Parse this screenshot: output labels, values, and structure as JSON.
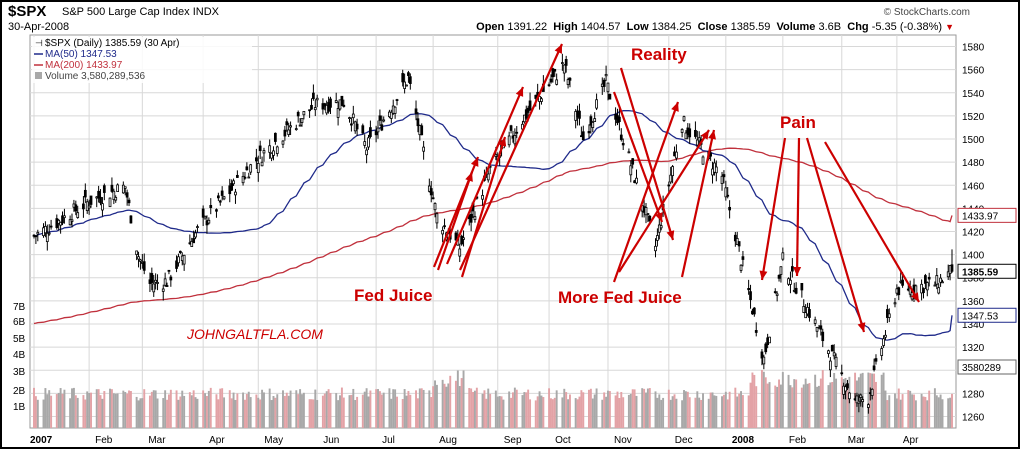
{
  "header": {
    "symbol": "$SPX",
    "name": "S&P 500 Large Cap Index",
    "exchange": "INDX",
    "date": "30-Apr-2008",
    "credit": "© StockCharts.com",
    "open_label": "Open",
    "open": "1391.22",
    "high_label": "High",
    "high": "1404.57",
    "low_label": "Low",
    "low": "1384.25",
    "close_label": "Close",
    "close": "1385.59",
    "volume_label": "Volume",
    "volume": "3.6B",
    "chg_label": "Chg",
    "chg": "-5.35 (-0.38%)"
  },
  "colors": {
    "price": "#000000",
    "ma50": "#1f2a8a",
    "ma200": "#c0303c",
    "volume_up": "#a8a8a8",
    "volume_down": "#e3a2a6",
    "annotation": "#cc0000",
    "grid": "#d8d8d8"
  },
  "chart_data": {
    "type": "candlestick",
    "legend_placement": "top-left",
    "grid": true,
    "legend": {
      "price": "$SPX (Daily) 1385.59 (30 Apr)",
      "ma50": "MA(50) 1347.53",
      "ma200": "MA(200) 1433.97",
      "volume": "Volume 3,580,289,536"
    },
    "x_tick_labels": [
      "2007",
      "Feb",
      "Mar",
      "Apr",
      "May",
      "Jun",
      "Jul",
      "Aug",
      "Sep",
      "Oct",
      "Nov",
      "Dec",
      "2008",
      "Feb",
      "Mar",
      "Apr"
    ],
    "y_range": [
      1250,
      1590
    ],
    "y_ticks": [
      1260,
      1280,
      1300,
      1320,
      1340,
      1360,
      1380,
      1400,
      1420,
      1440,
      1460,
      1480,
      1500,
      1520,
      1540,
      1560,
      1580
    ],
    "volume_ticks": [
      "1B",
      "2B",
      "3B",
      "4B",
      "5B",
      "6B",
      "7B"
    ],
    "volume_ticks_right": [
      "3580289"
    ],
    "last_price_tag": "1385.59",
    "ma50_tag": "1347.53",
    "ma200_tag": "1433.97",
    "price_series": [
      {
        "date": "2007-01-03",
        "close": 1416
      },
      {
        "date": "2007-01-17",
        "close": 1430
      },
      {
        "date": "2007-02-01",
        "close": 1446
      },
      {
        "date": "2007-02-20",
        "close": 1459
      },
      {
        "date": "2007-02-27",
        "close": 1399
      },
      {
        "date": "2007-03-05",
        "close": 1375
      },
      {
        "date": "2007-03-14",
        "close": 1377
      },
      {
        "date": "2007-03-30",
        "close": 1421
      },
      {
        "date": "2007-04-30",
        "close": 1482
      },
      {
        "date": "2007-05-31",
        "close": 1530
      },
      {
        "date": "2007-06-15",
        "close": 1532
      },
      {
        "date": "2007-06-27",
        "close": 1492
      },
      {
        "date": "2007-07-19",
        "close": 1553
      },
      {
        "date": "2007-08-03",
        "close": 1433
      },
      {
        "date": "2007-08-15",
        "close": 1406
      },
      {
        "date": "2007-08-31",
        "close": 1473
      },
      {
        "date": "2007-09-18",
        "close": 1519
      },
      {
        "date": "2007-10-09",
        "close": 1565
      },
      {
        "date": "2007-10-19",
        "close": 1500
      },
      {
        "date": "2007-10-31",
        "close": 1549
      },
      {
        "date": "2007-11-26",
        "close": 1407
      },
      {
        "date": "2007-12-10",
        "close": 1515
      },
      {
        "date": "2007-12-31",
        "close": 1468
      },
      {
        "date": "2008-01-22",
        "close": 1310
      },
      {
        "date": "2008-02-01",
        "close": 1395
      },
      {
        "date": "2008-02-15",
        "close": 1350
      },
      {
        "date": "2008-03-10",
        "close": 1273
      },
      {
        "date": "2008-03-17",
        "close": 1276
      },
      {
        "date": "2008-04-01",
        "close": 1370
      },
      {
        "date": "2008-04-22",
        "close": 1375
      },
      {
        "date": "2008-04-30",
        "close": 1386
      }
    ]
  },
  "annotations": {
    "reality": "Reality",
    "fed_juice": "Fed Juice",
    "more_fed_juice": "More Fed Juice",
    "pain": "Pain",
    "watermark": "JOHNGALTFLA.COM"
  }
}
